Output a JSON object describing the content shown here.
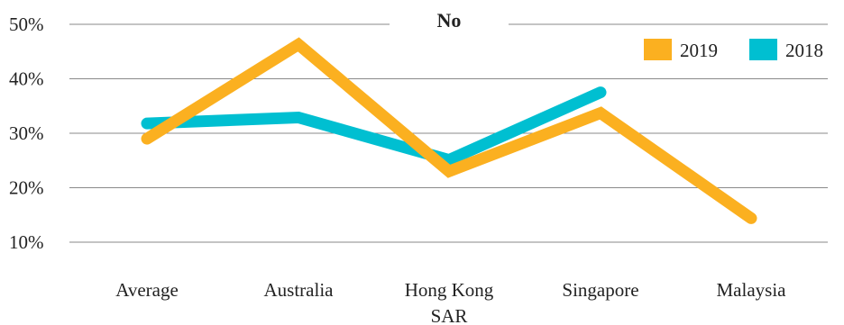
{
  "chart_data": {
    "type": "line",
    "title": "No",
    "categories": [
      "Average",
      "Australia",
      "Hong Kong SAR",
      "Singapore",
      "Malaysia"
    ],
    "y_ticks": [
      "10%",
      "20%",
      "30%",
      "40%",
      "50%"
    ],
    "ylim": [
      10,
      50
    ],
    "grid": true,
    "legend_position": "top-right",
    "series": [
      {
        "name": "2019",
        "color": "#FBB020",
        "values": [
          29.0,
          46.3,
          23.0,
          33.7,
          14.4
        ]
      },
      {
        "name": "2018",
        "color": "#00BFD1",
        "values": [
          31.8,
          32.9,
          25.1,
          37.5,
          null
        ]
      }
    ]
  }
}
